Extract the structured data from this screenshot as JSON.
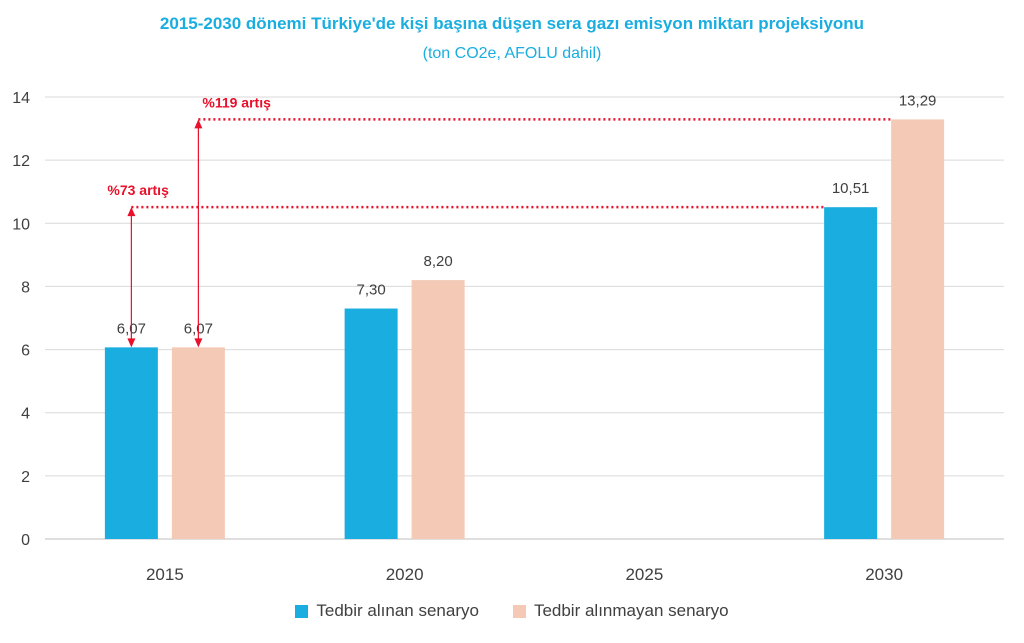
{
  "chart_data": {
    "type": "bar",
    "title": "2015-2030 dönemi Türkiye'de kişi başına düşen sera gazı emisyon miktarı projeksiyonu",
    "subtitle": "(ton CO2e, AFOLU dahil)",
    "categories": [
      "2015",
      "2020",
      "2025",
      "2030"
    ],
    "series": [
      {
        "name": "Tedbir alınan senaryo",
        "values": [
          6.07,
          7.3,
          null,
          10.51
        ],
        "labels": [
          "6,07",
          "7,30",
          "",
          "10,51"
        ],
        "color": "#1aaee0"
      },
      {
        "name": "Tedbir alınmayan senaryo",
        "values": [
          6.07,
          8.2,
          null,
          13.29
        ],
        "labels": [
          "6,07",
          "8,20",
          "",
          "13,29"
        ],
        "color": "#f4c9b5"
      }
    ],
    "ylim": [
      0,
      14
    ],
    "yticks": [
      "0",
      "2",
      "4",
      "6",
      "8",
      "10",
      "12",
      "14"
    ],
    "grid": true,
    "legend": "bottom",
    "annotations": [
      {
        "text": "%73 artış",
        "from_value": 6.07,
        "to_value": 10.51,
        "color": "#e8102a"
      },
      {
        "text": "%119 artış",
        "from_value": 6.07,
        "to_value": 13.29,
        "color": "#e8102a"
      }
    ],
    "title_color": "#1aaee0"
  }
}
